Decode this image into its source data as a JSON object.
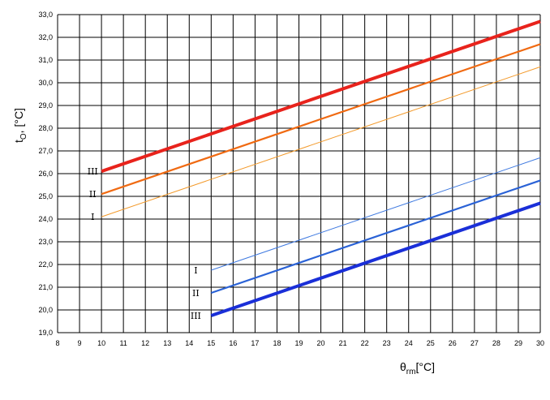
{
  "chart_data": {
    "type": "line",
    "title": "",
    "xlabel": {
      "main": "θ",
      "sub": "rm",
      "unit": "[°C]"
    },
    "ylabel": {
      "main": "t",
      "sub": "O",
      "unit": ", [°C]"
    },
    "xlim": [
      8,
      30
    ],
    "ylim": [
      19.0,
      33.0
    ],
    "x_ticks": [
      "8",
      "9",
      "10",
      "11",
      "12",
      "13",
      "14",
      "15",
      "16",
      "17",
      "18",
      "19",
      "20",
      "21",
      "22",
      "23",
      "24",
      "25",
      "26",
      "27",
      "28",
      "29",
      "30"
    ],
    "y_ticks": [
      "19,0",
      "20,0",
      "21,0",
      "22,0",
      "23,0",
      "24,0",
      "25,0",
      "26,0",
      "27,0",
      "28,0",
      "29,0",
      "30,0",
      "31,0",
      "32,0",
      "33,0"
    ],
    "grid": true,
    "series": [
      {
        "name": "I",
        "label_x": 9.6,
        "x": [
          10,
          30
        ],
        "y": [
          24.1,
          30.7
        ],
        "color": "#f39a2b",
        "width": 1
      },
      {
        "name": "II",
        "label_x": 9.6,
        "x": [
          10,
          30
        ],
        "y": [
          25.1,
          31.7
        ],
        "color": "#f06a12",
        "width": 2.2
      },
      {
        "name": "III",
        "label_x": 9.6,
        "x": [
          10,
          30
        ],
        "y": [
          26.1,
          32.7
        ],
        "color": "#e8231c",
        "width": 4
      },
      {
        "name": "I",
        "label_x": 14.3,
        "x": [
          15,
          30
        ],
        "y": [
          21.75,
          26.7
        ],
        "color": "#3e79e0",
        "width": 1
      },
      {
        "name": "II",
        "label_x": 14.3,
        "x": [
          15,
          30
        ],
        "y": [
          20.75,
          25.7
        ],
        "color": "#2a62d6",
        "width": 2.2
      },
      {
        "name": "III",
        "label_x": 14.3,
        "x": [
          15,
          30
        ],
        "y": [
          19.75,
          24.7
        ],
        "color": "#1a2fd8",
        "width": 4
      }
    ]
  }
}
